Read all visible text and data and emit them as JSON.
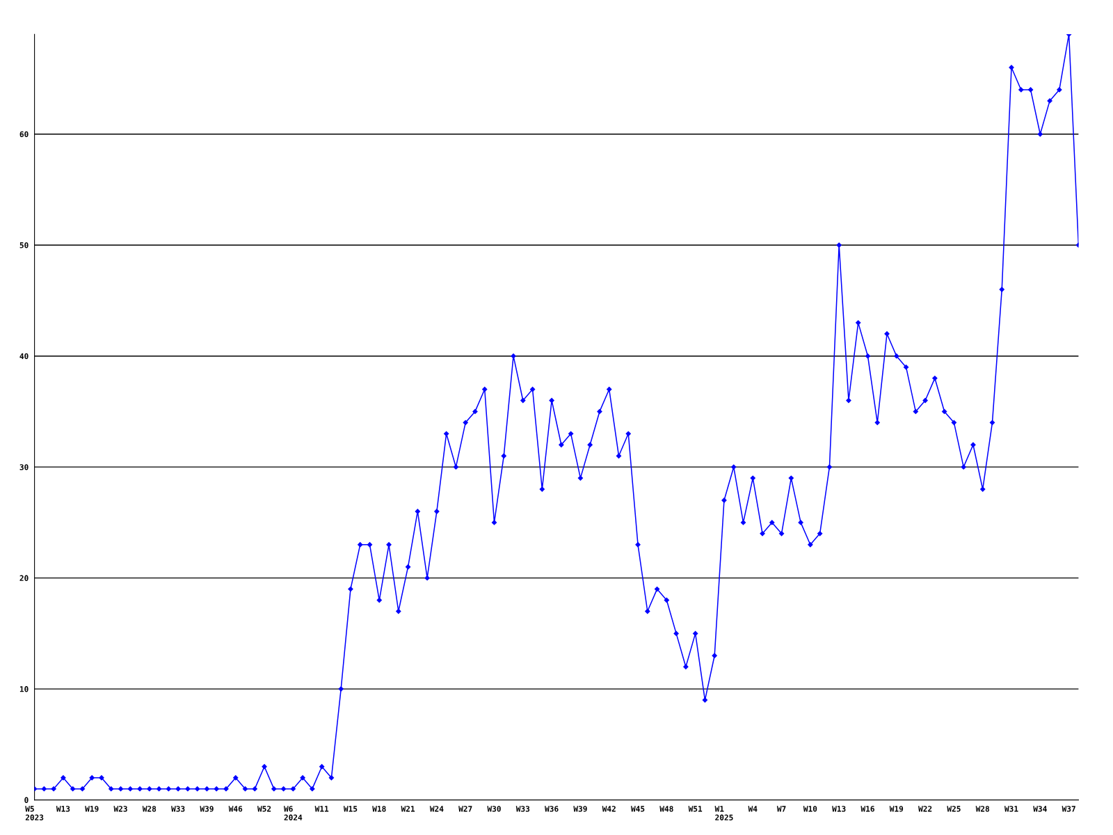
{
  "chart_data": {
    "type": "line",
    "categories": [
      "W5\n2023",
      null,
      null,
      "W13",
      null,
      null,
      "W19",
      null,
      null,
      "W23",
      null,
      null,
      "W28",
      null,
      null,
      "W33",
      null,
      null,
      "W39",
      null,
      null,
      "W46",
      null,
      null,
      "W52",
      null,
      null,
      "W6\n2024",
      null,
      null,
      "W11",
      null,
      null,
      "W15",
      null,
      null,
      "W18",
      null,
      null,
      "W21",
      null,
      null,
      "W24",
      null,
      null,
      "W27",
      null,
      null,
      "W30",
      null,
      null,
      "W33",
      null,
      null,
      "W36",
      null,
      null,
      "W39",
      null,
      null,
      "W42",
      null,
      null,
      "W45",
      null,
      null,
      "W48",
      null,
      null,
      "W51",
      null,
      null,
      "W1\n2025",
      null,
      null,
      "W4",
      null,
      null,
      "W7",
      null,
      null,
      "W10",
      null,
      null,
      "W13",
      null,
      null,
      "W16",
      null,
      null,
      "W19",
      null,
      null,
      "W22",
      null,
      null,
      "W25",
      null,
      null,
      "W28",
      null,
      null,
      "W31",
      null,
      null,
      "W34",
      null,
      null,
      "W37",
      null
    ],
    "series": [
      {
        "color": "#0000ff",
        "values": [
          1,
          1,
          1,
          2,
          1,
          1,
          2,
          2,
          1,
          1,
          1,
          1,
          1,
          1,
          1,
          1,
          1,
          1,
          1,
          1,
          1,
          2,
          1,
          1,
          3,
          1,
          1,
          1,
          2,
          1,
          3,
          2,
          10,
          19,
          23,
          23,
          18,
          23,
          17,
          21,
          26,
          20,
          26,
          33,
          30,
          34,
          35,
          37,
          25,
          31,
          40,
          36,
          37,
          28,
          36,
          32,
          33,
          29,
          32,
          35,
          37,
          31,
          33,
          23,
          17,
          19,
          18,
          15,
          12,
          15,
          9,
          13,
          27,
          30,
          25,
          29,
          24,
          25,
          24,
          29,
          25,
          23,
          24,
          30,
          50,
          36,
          43,
          40,
          34,
          42,
          40,
          39,
          35,
          36,
          38,
          35,
          34,
          30,
          32,
          28,
          34,
          46,
          66,
          64,
          64,
          60,
          63,
          64,
          69,
          50
        ]
      }
    ],
    "ylim": [
      0,
      69
    ],
    "yticks": [
      0,
      10,
      20,
      30,
      40,
      50,
      60
    ],
    "grid": "y",
    "legend": false,
    "marker": "diamond",
    "line_style": "solid"
  }
}
